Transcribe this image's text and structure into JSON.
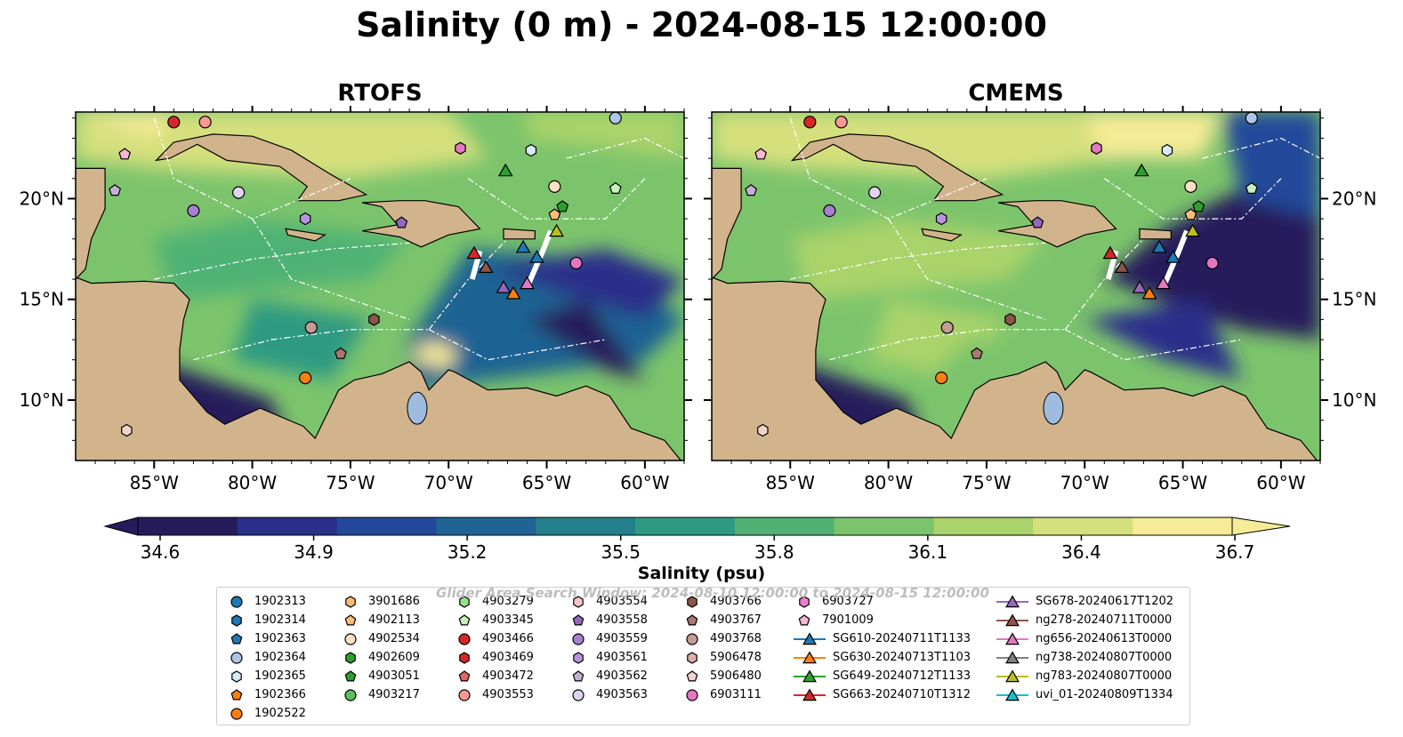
{
  "title": "Salinity (0 m) - 2024-08-15 12:00:00",
  "panels": [
    {
      "title": "RTOFS"
    },
    {
      "title": "CMEMS"
    }
  ],
  "axes": {
    "lon_ticks": [
      "85°W",
      "80°W",
      "75°W",
      "70°W",
      "65°W",
      "60°W"
    ],
    "lat_ticks": [
      "20°N",
      "15°N",
      "10°N"
    ]
  },
  "colorbar": {
    "label": "Salinity (psu)",
    "ticks": [
      "34.6",
      "34.9",
      "35.2",
      "35.5",
      "35.8",
      "36.1",
      "36.4",
      "36.7"
    ],
    "colors": [
      "#261c5c",
      "#2a2f8a",
      "#24489a",
      "#1f6493",
      "#23808b",
      "#2f9a82",
      "#4fb274",
      "#7cc46c",
      "#aad36b",
      "#d5e07d",
      "#f6eb96"
    ],
    "extend": "both"
  },
  "watermark": "Glider Area Search Window: 2024-08-10 12:00:00 to 2024-08-15 12:00:00",
  "chart_data": {
    "type": "heatmap",
    "title": "Salinity (0 m) - 2024-08-15 12:00:00",
    "panels": [
      "RTOFS",
      "CMEMS"
    ],
    "variable": "Salinity",
    "units": "psu",
    "depth_m": 0,
    "datetime": "2024-08-15 12:00:00",
    "lon_range": [
      -89,
      -58
    ],
    "lat_range": [
      7,
      24.3
    ],
    "color_range": [
      34.6,
      36.7
    ],
    "colorbar_ticks": [
      34.6,
      34.9,
      35.2,
      35.5,
      35.8,
      36.1,
      36.4,
      36.7
    ],
    "argo_floats": [
      "1902313",
      "1902314",
      "1902363",
      "1902364",
      "1902365",
      "1902366",
      "1902522",
      "3901686",
      "4902113",
      "4902534",
      "4902609",
      "4903051",
      "4903217",
      "4903279",
      "4903345",
      "4903466",
      "4903469",
      "4903472",
      "4903553",
      "4903554",
      "4903558",
      "4903559",
      "4903561",
      "4903562",
      "4903563",
      "4903766",
      "4903767",
      "4903768",
      "5906478",
      "5906480",
      "6903111",
      "6903727",
      "7901009"
    ],
    "gliders": [
      "SG610-20240711T1133",
      "SG630-20240713T1103",
      "SG649-20240712T1133",
      "SG663-20240710T1312",
      "SG678-20240617T1202",
      "ng278-20240711T0000",
      "ng656-20240613T0000",
      "ng738-20240807T0000",
      "ng783-20240807T0000",
      "uvi_01-20240809T1334"
    ]
  },
  "legend": {
    "columns": [
      [
        {
          "label": "1902313",
          "marker": "circle",
          "color": "#1f77b4"
        },
        {
          "label": "1902314",
          "marker": "hexagon",
          "color": "#1f77b4"
        },
        {
          "label": "1902363",
          "marker": "pentagon",
          "color": "#1f77b4"
        },
        {
          "label": "1902364",
          "marker": "circle",
          "color": "#aec7e8"
        },
        {
          "label": "1902365",
          "marker": "hexagon",
          "color": "#d6eaf8"
        },
        {
          "label": "1902366",
          "marker": "pentagon",
          "color": "#ff7f0e"
        },
        {
          "label": "1902522",
          "marker": "circle",
          "color": "#ff7f0e"
        }
      ],
      [
        {
          "label": "3901686",
          "marker": "hexagon",
          "color": "#ffbb78"
        },
        {
          "label": "4902113",
          "marker": "pentagon",
          "color": "#ffbb78"
        },
        {
          "label": "4902534",
          "marker": "circle",
          "color": "#fde0c5"
        },
        {
          "label": "4902609",
          "marker": "hexagon",
          "color": "#2ca02c"
        },
        {
          "label": "4903051",
          "marker": "pentagon",
          "color": "#2ca02c"
        },
        {
          "label": "4903217",
          "marker": "circle",
          "color": "#5cc05c"
        }
      ],
      [
        {
          "label": "4903279",
          "marker": "hexagon",
          "color": "#98df8a"
        },
        {
          "label": "4903345",
          "marker": "pentagon",
          "color": "#c7f0bd"
        },
        {
          "label": "4903466",
          "marker": "circle",
          "color": "#d62728"
        },
        {
          "label": "4903469",
          "marker": "hexagon",
          "color": "#d62728"
        },
        {
          "label": "4903472",
          "marker": "pentagon",
          "color": "#e36566"
        },
        {
          "label": "4903553",
          "marker": "circle",
          "color": "#ff9896"
        }
      ],
      [
        {
          "label": "4903554",
          "marker": "hexagon",
          "color": "#ffc6c5"
        },
        {
          "label": "4903558",
          "marker": "pentagon",
          "color": "#9467bd"
        },
        {
          "label": "4903559",
          "marker": "circle",
          "color": "#a57fd0"
        },
        {
          "label": "4903561",
          "marker": "hexagon",
          "color": "#b894e0"
        },
        {
          "label": "4903562",
          "marker": "pentagon",
          "color": "#c5b0d5"
        },
        {
          "label": "4903563",
          "marker": "circle",
          "color": "#e1d2f0"
        }
      ],
      [
        {
          "label": "4903766",
          "marker": "hexagon",
          "color": "#8c564b"
        },
        {
          "label": "4903767",
          "marker": "pentagon",
          "color": "#a8786d"
        },
        {
          "label": "4903768",
          "marker": "circle",
          "color": "#c49c94"
        },
        {
          "label": "5906478",
          "marker": "hexagon",
          "color": "#dcb0a6"
        },
        {
          "label": "5906480",
          "marker": "pentagon",
          "color": "#f2d3cc"
        },
        {
          "label": "6903111",
          "marker": "circle",
          "color": "#e377c2"
        }
      ],
      [
        {
          "label": "6903727",
          "marker": "hexagon",
          "color": "#f07fcf"
        },
        {
          "label": "7901009",
          "marker": "pentagon",
          "color": "#f7b6d2"
        },
        {
          "label": "SG610-20240711T1133",
          "marker": "triangle-line",
          "color": "#1f77b4"
        },
        {
          "label": "SG630-20240713T1103",
          "marker": "triangle-line",
          "color": "#ff7f0e"
        },
        {
          "label": "SG649-20240712T1133",
          "marker": "triangle-line",
          "color": "#2ca02c"
        },
        {
          "label": "SG663-20240710T1312",
          "marker": "triangle-line",
          "color": "#d62728"
        }
      ],
      [
        {
          "label": "SG678-20240617T1202",
          "marker": "triangle-line",
          "color": "#9467bd"
        },
        {
          "label": "ng278-20240711T0000",
          "marker": "triangle-line",
          "color": "#8c564b"
        },
        {
          "label": "ng656-20240613T0000",
          "marker": "triangle-line",
          "color": "#e377c2"
        },
        {
          "label": "ng738-20240807T0000",
          "marker": "triangle-line",
          "color": "#7f7f7f"
        },
        {
          "label": "ng783-20240807T0000",
          "marker": "triangle-line",
          "color": "#bcbd22"
        },
        {
          "label": "uvi_01-20240809T1334",
          "marker": "triangle-line",
          "color": "#17becf"
        }
      ]
    ]
  }
}
